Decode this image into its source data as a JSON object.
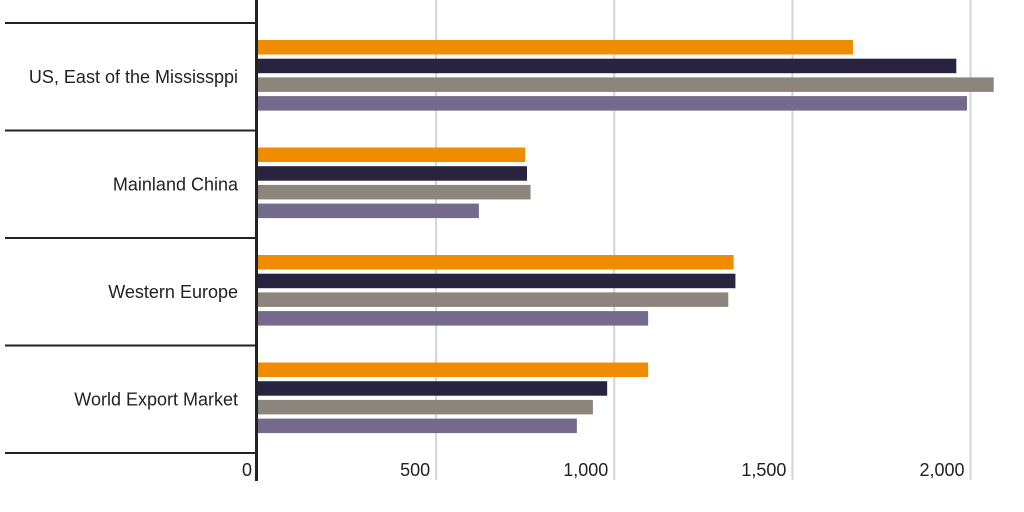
{
  "chart_data": {
    "type": "bar",
    "orientation": "horizontal",
    "categories": [
      "US, East of the Mississppi",
      "Mainland China",
      "Western Europe",
      "World Export Market"
    ],
    "series": [
      {
        "color": "#f08c00",
        "values": [
          1670,
          750,
          1335,
          1095
        ]
      },
      {
        "color": "#29233f",
        "values": [
          1960,
          755,
          1340,
          980
        ]
      },
      {
        "color": "#8c857d",
        "values": [
          2065,
          765,
          1320,
          940
        ]
      },
      {
        "color": "#736a8c",
        "values": [
          1990,
          620,
          1095,
          895
        ]
      }
    ],
    "xticks": [
      0,
      500,
      1000,
      1500,
      2000
    ],
    "xtick_labels": [
      "0",
      "500",
      "1,000",
      "1,500",
      "2,000"
    ],
    "xlim": [
      0,
      2150
    ],
    "grid": "vertical",
    "title": "",
    "xlabel": "",
    "ylabel": ""
  }
}
